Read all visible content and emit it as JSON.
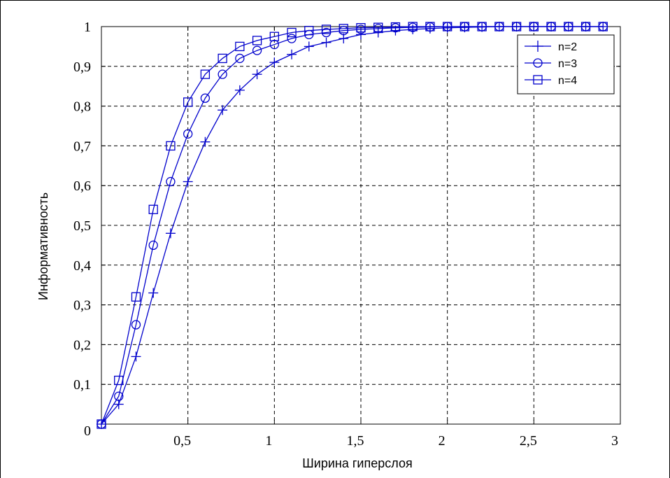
{
  "chart_data": {
    "type": "line",
    "xlabel": "Ширина гиперслоя",
    "ylabel": "Информативность",
    "xlim": [
      0,
      3
    ],
    "ylim": [
      0,
      1
    ],
    "x_ticks": [
      {
        "value": 0.5,
        "label": "0,5"
      },
      {
        "value": 1,
        "label": "1"
      },
      {
        "value": 1.5,
        "label": "1,5"
      },
      {
        "value": 2,
        "label": "2"
      },
      {
        "value": 2.5,
        "label": "2,5"
      },
      {
        "value": 3,
        "label": "3"
      }
    ],
    "y_ticks": [
      {
        "value": 0,
        "label": "0"
      },
      {
        "value": 0.1,
        "label": "0,1"
      },
      {
        "value": 0.2,
        "label": "0,2"
      },
      {
        "value": 0.3,
        "label": "0,3"
      },
      {
        "value": 0.4,
        "label": "0,4"
      },
      {
        "value": 0.5,
        "label": "0,5"
      },
      {
        "value": 0.6,
        "label": "0,6"
      },
      {
        "value": 0.7,
        "label": "0,7"
      },
      {
        "value": 0.8,
        "label": "0,8"
      },
      {
        "value": 0.9,
        "label": "0,9"
      },
      {
        "value": 1,
        "label": "1"
      }
    ],
    "grid": true,
    "legend_position": "top-right",
    "x": [
      0,
      0.1,
      0.2,
      0.3,
      0.4,
      0.5,
      0.6,
      0.7,
      0.8,
      0.9,
      1.0,
      1.1,
      1.2,
      1.3,
      1.4,
      1.5,
      1.6,
      1.7,
      1.8,
      1.9,
      2.0,
      2.1,
      2.2,
      2.3,
      2.4,
      2.5,
      2.6,
      2.7,
      2.8,
      2.9
    ],
    "series": [
      {
        "name": "n=2",
        "marker": "plus",
        "color": "#0000cc",
        "values": [
          0.0,
          0.05,
          0.17,
          0.33,
          0.48,
          0.61,
          0.71,
          0.79,
          0.84,
          0.88,
          0.91,
          0.93,
          0.95,
          0.96,
          0.97,
          0.98,
          0.985,
          0.99,
          0.993,
          0.995,
          0.997,
          0.998,
          0.999,
          1.0,
          1.0,
          1.0,
          1.0,
          1.0,
          1.0,
          1.0
        ]
      },
      {
        "name": "n=3",
        "marker": "circle",
        "color": "#0000cc",
        "values": [
          0.0,
          0.07,
          0.25,
          0.45,
          0.61,
          0.73,
          0.82,
          0.88,
          0.92,
          0.94,
          0.955,
          0.97,
          0.98,
          0.985,
          0.99,
          0.993,
          0.995,
          0.997,
          0.998,
          0.999,
          1.0,
          1.0,
          1.0,
          1.0,
          1.0,
          1.0,
          1.0,
          1.0,
          1.0,
          1.0
        ]
      },
      {
        "name": "n=4",
        "marker": "square",
        "color": "#0000cc",
        "values": [
          0.0,
          0.11,
          0.32,
          0.54,
          0.7,
          0.81,
          0.88,
          0.92,
          0.95,
          0.965,
          0.975,
          0.985,
          0.99,
          0.993,
          0.995,
          0.997,
          0.998,
          0.999,
          1.0,
          1.0,
          1.0,
          1.0,
          1.0,
          1.0,
          1.0,
          1.0,
          1.0,
          1.0,
          1.0,
          1.0
        ]
      }
    ]
  }
}
